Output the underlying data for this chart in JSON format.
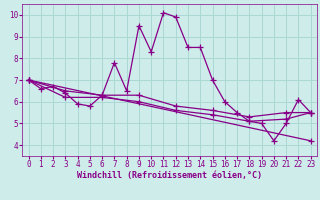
{
  "title": "",
  "xlabel": "Windchill (Refroidissement éolien,°C)",
  "ylabel": "",
  "xlim": [
    -0.5,
    23.5
  ],
  "ylim": [
    3.5,
    10.5
  ],
  "xticks": [
    0,
    1,
    2,
    3,
    4,
    5,
    6,
    7,
    8,
    9,
    10,
    11,
    12,
    13,
    14,
    15,
    16,
    17,
    18,
    19,
    20,
    21,
    22,
    23
  ],
  "yticks": [
    4,
    5,
    6,
    7,
    8,
    9,
    10
  ],
  "background_color": "#ceecea",
  "grid_color": "#aad8d4",
  "line_color": "#880088",
  "lines": [
    {
      "x": [
        0,
        1,
        2,
        3,
        4,
        5,
        6,
        7,
        8,
        9,
        10,
        11,
        12,
        13,
        14,
        15,
        16,
        17,
        18,
        19,
        20,
        21,
        22,
        23
      ],
      "y": [
        7.0,
        6.6,
        6.7,
        6.4,
        5.9,
        5.8,
        6.3,
        7.8,
        6.5,
        9.5,
        8.3,
        10.1,
        9.9,
        8.5,
        8.5,
        7.0,
        6.0,
        5.5,
        5.1,
        5.0,
        4.2,
        5.0,
        6.1,
        5.5
      ]
    },
    {
      "x": [
        0,
        3,
        6,
        9,
        12,
        15,
        18,
        21,
        23
      ],
      "y": [
        7.0,
        6.5,
        6.3,
        6.3,
        5.8,
        5.6,
        5.3,
        5.5,
        5.5
      ]
    },
    {
      "x": [
        0,
        3,
        6,
        9,
        12,
        15,
        18,
        21,
        23
      ],
      "y": [
        7.0,
        6.2,
        6.2,
        6.0,
        5.6,
        5.4,
        5.1,
        5.2,
        5.5
      ]
    },
    {
      "x": [
        0,
        23
      ],
      "y": [
        7.0,
        4.2
      ]
    }
  ],
  "tick_font_size": 5.5,
  "xlabel_font_size": 6.0,
  "marker": "+",
  "markersize": 4,
  "linewidth": 0.9
}
